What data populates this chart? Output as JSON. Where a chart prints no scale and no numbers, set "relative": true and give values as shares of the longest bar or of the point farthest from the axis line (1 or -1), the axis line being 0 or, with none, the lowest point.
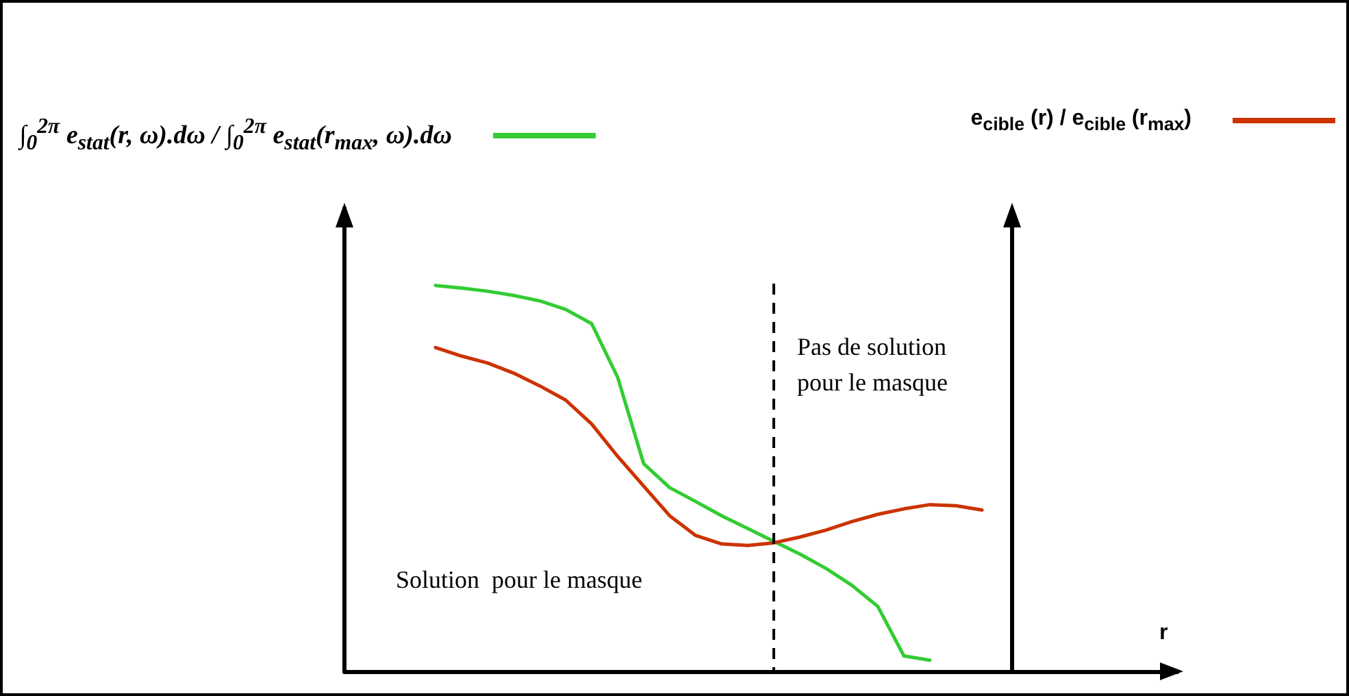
{
  "chart_data": {
    "type": "line",
    "relative": true,
    "xlabel": "r",
    "grid": false,
    "legend": "top",
    "marker": "none",
    "categories": [
      null,
      null,
      null,
      null,
      null,
      null,
      null,
      null,
      null,
      null,
      null,
      null,
      null,
      null,
      null,
      null,
      null,
      null,
      null,
      null,
      null,
      null,
      null,
      null,
      null,
      null,
      null,
      null,
      null,
      null,
      null,
      null
    ],
    "series": [
      {
        "name": "∫$_{0}$$^{2π}$ e$_{stat}$(r, ω).dω / ∫$_{0}$$^{2π}$ e$_{stat}$(r$_{max}$, ω).dω",
        "color": "#33cc33",
        "values": [
          null,
          null,
          null,
          1,
          0.993,
          0.985,
          0.974,
          0.96,
          0.938,
          0.901,
          0.762,
          0.538,
          0.476,
          0.44,
          0.403,
          0.37,
          0.337,
          0.304,
          0.267,
          0.223,
          0.168,
          0.04,
          0.029,
          null,
          null,
          null,
          null,
          null,
          null,
          null,
          null,
          null
        ]
      },
      {
        "name": "e$_{cible}$ (r) / e$_{cible}$ (r$_{max}$)",
        "color": "#cc3300",
        "values": [
          null,
          null,
          null,
          0.839,
          0.817,
          0.799,
          0.773,
          0.74,
          0.703,
          0.641,
          0.557,
          0.48,
          0.403,
          0.352,
          0.33,
          0.326,
          0.333,
          0.348,
          0.366,
          0.388,
          0.407,
          0.421,
          0.432,
          0.429,
          0.418,
          null,
          null,
          null,
          null,
          null,
          null,
          null
        ]
      }
    ],
    "annotations": [
      "Pas de solution\npour le masque",
      "Solution  pour le masque"
    ]
  }
}
